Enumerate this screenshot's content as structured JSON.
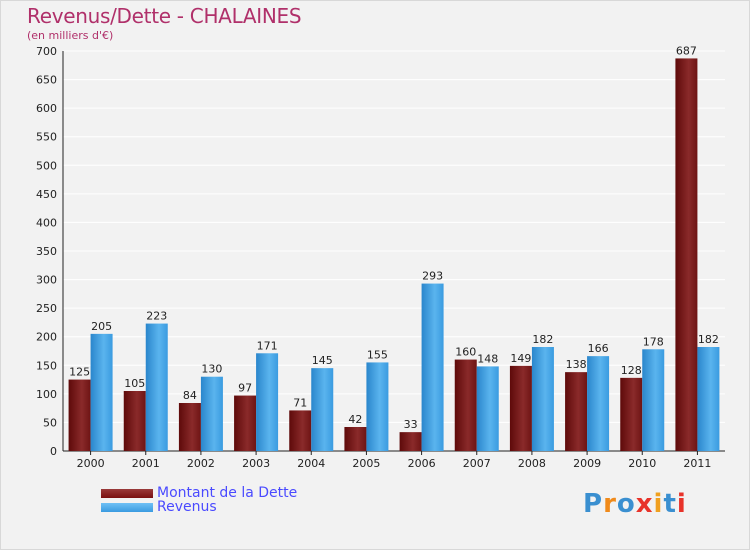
{
  "title": "Revenus/Dette - CHALAINES",
  "subtitle": "(en milliers d'€)",
  "legend": [
    {
      "label": "Montant de la Dette",
      "color": "#7a1010"
    },
    {
      "label": "Revenus",
      "color": "#3a9be0"
    }
  ],
  "logo": {
    "text": "Proxiti"
  },
  "colors": {
    "dette": "#7a1010",
    "revenus": "#3a9be0",
    "title": "#b0306a",
    "legend_text": "#4a4aff"
  },
  "chart_data": {
    "type": "bar",
    "title": "Revenus/Dette - CHALAINES",
    "ylabel": "(en milliers d'€)",
    "xlabel": "",
    "ylim": [
      0,
      700
    ],
    "yticks": [
      0,
      50,
      100,
      150,
      200,
      250,
      300,
      350,
      400,
      450,
      500,
      550,
      600,
      650,
      700
    ],
    "grid": true,
    "legend_position": "bottom-left",
    "categories": [
      "2000",
      "2001",
      "2002",
      "2003",
      "2004",
      "2005",
      "2006",
      "2007",
      "2008",
      "2009",
      "2010",
      "2011"
    ],
    "series": [
      {
        "name": "Montant de la Dette",
        "values": [
          125,
          105,
          84,
          97,
          71,
          42,
          33,
          160,
          149,
          138,
          128,
          687
        ]
      },
      {
        "name": "Revenus",
        "values": [
          205,
          223,
          130,
          171,
          145,
          155,
          293,
          148,
          182,
          166,
          178,
          182
        ]
      }
    ]
  }
}
